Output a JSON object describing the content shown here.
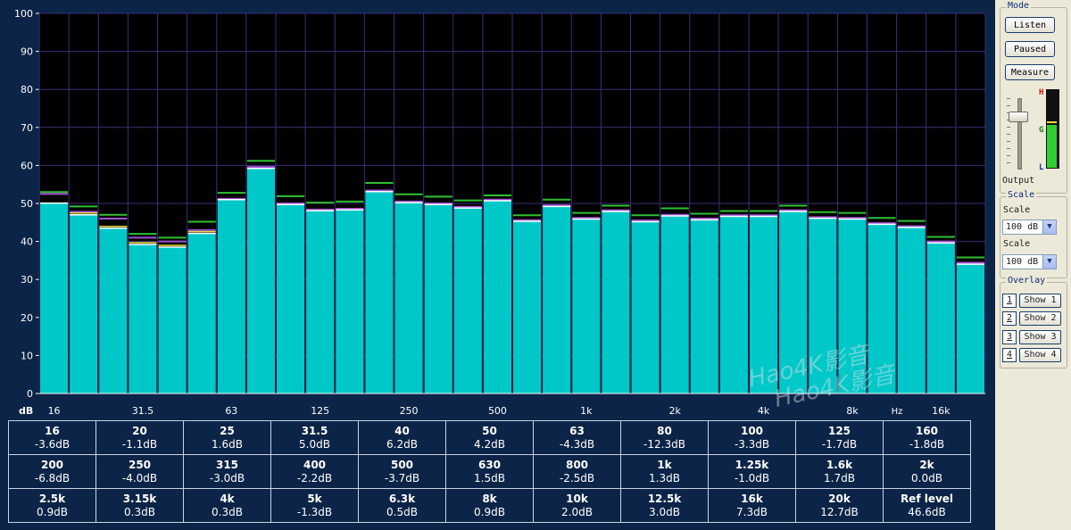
{
  "chart_data": {
    "type": "bar",
    "ylabel": "dB",
    "ylim": [
      0,
      100
    ],
    "y_ticks": [
      0,
      10,
      20,
      30,
      40,
      50,
      60,
      70,
      80,
      90,
      100
    ],
    "x_unit_label": "Hz",
    "x_tick_labels": [
      "16",
      "31.5",
      "63",
      "125",
      "250",
      "500",
      "1k",
      "2k",
      "4k",
      "8k",
      "16k"
    ],
    "grid": true,
    "categories": [
      "16",
      "20",
      "25",
      "31.5",
      "40",
      "50",
      "63",
      "80",
      "100",
      "125",
      "160",
      "200",
      "250",
      "315",
      "400",
      "500",
      "630",
      "800",
      "1k",
      "1.25k",
      "1.6k",
      "2k",
      "2.5k",
      "3.15k",
      "4k",
      "5k",
      "6.3k",
      "8k",
      "10k",
      "12.5k",
      "16k",
      "20k"
    ],
    "series": [
      {
        "values": [
          50.1,
          47.0,
          43.5,
          39.2,
          38.5,
          42.1,
          51.0,
          59.2,
          49.7,
          48.1,
          48.3,
          53.1,
          50.2,
          49.7,
          48.8,
          50.7,
          45.3,
          49.2,
          45.9,
          47.9,
          45.2,
          46.7,
          45.7,
          46.6,
          46.6,
          47.9,
          46.1,
          45.9,
          44.5,
          43.7,
          39.6,
          34.0
        ],
        "color": "#00c8c8"
      },
      {
        "values": [
          52.5,
          47.8,
          46.0,
          41.0,
          40.0,
          43.0,
          51.2,
          59.6,
          50.0,
          48.4,
          48.6,
          53.4,
          50.5,
          50.0,
          49.1,
          51.0,
          45.6,
          49.5,
          46.2,
          48.2,
          45.5,
          47.0,
          46.0,
          46.9,
          46.9,
          48.2,
          46.4,
          46.2,
          44.8,
          44.0,
          40.0,
          34.4
        ],
        "color": "#a050d0"
      },
      {
        "values": [
          53.0,
          49.2,
          47.0,
          42.0,
          41.0,
          45.2,
          52.8,
          61.2,
          51.9,
          50.2,
          50.5,
          55.4,
          52.4,
          51.8,
          50.8,
          52.1,
          46.9,
          51.0,
          47.5,
          49.4,
          46.9,
          48.7,
          47.3,
          48.0,
          48.0,
          49.4,
          47.7,
          47.5,
          46.2,
          45.4,
          41.2,
          35.8
        ],
        "color": "#30c030"
      }
    ]
  },
  "band_table": {
    "rows": [
      [
        {
          "freq": "16",
          "level": "-3.6dB"
        },
        {
          "freq": "20",
          "level": "-1.1dB"
        },
        {
          "freq": "25",
          "level": "1.6dB"
        },
        {
          "freq": "31.5",
          "level": "5.0dB"
        },
        {
          "freq": "40",
          "level": "6.2dB"
        },
        {
          "freq": "50",
          "level": "4.2dB"
        },
        {
          "freq": "63",
          "level": "-4.3dB"
        },
        {
          "freq": "80",
          "level": "-12.3dB"
        },
        {
          "freq": "100",
          "level": "-3.3dB"
        },
        {
          "freq": "125",
          "level": "-1.7dB"
        },
        {
          "freq": "160",
          "level": "-1.8dB"
        }
      ],
      [
        {
          "freq": "200",
          "level": "-6.8dB"
        },
        {
          "freq": "250",
          "level": "-4.0dB"
        },
        {
          "freq": "315",
          "level": "-3.0dB"
        },
        {
          "freq": "400",
          "level": "-2.2dB"
        },
        {
          "freq": "500",
          "level": "-3.7dB"
        },
        {
          "freq": "630",
          "level": "1.5dB"
        },
        {
          "freq": "800",
          "level": "-2.5dB"
        },
        {
          "freq": "1k",
          "level": "1.3dB"
        },
        {
          "freq": "1.25k",
          "level": "-1.0dB"
        },
        {
          "freq": "1.6k",
          "level": "1.7dB"
        },
        {
          "freq": "2k",
          "level": "0.0dB"
        }
      ],
      [
        {
          "freq": "2.5k",
          "level": "0.9dB"
        },
        {
          "freq": "3.15k",
          "level": "0.3dB"
        },
        {
          "freq": "4k",
          "level": "0.3dB"
        },
        {
          "freq": "5k",
          "level": "-1.3dB"
        },
        {
          "freq": "6.3k",
          "level": "0.5dB"
        },
        {
          "freq": "8k",
          "level": "0.9dB"
        },
        {
          "freq": "10k",
          "level": "2.0dB"
        },
        {
          "freq": "12.5k",
          "level": "3.0dB"
        },
        {
          "freq": "16k",
          "level": "7.3dB"
        },
        {
          "freq": "20k",
          "level": "12.7dB"
        },
        {
          "freq": "Ref level",
          "level": "46.6dB"
        }
      ]
    ]
  },
  "watermark": {
    "line1": "Hao4K影音",
    "line2": "Hao4K影音"
  },
  "side_panel": {
    "mode": {
      "title": "Mode",
      "listen": "Listen",
      "paused": "Paused",
      "measure": "Measure"
    },
    "output": {
      "label": "Output",
      "meter_h": "H",
      "meter_g": "G",
      "meter_l": "L",
      "level_fraction": 0.55
    },
    "scale": {
      "title": "Scale",
      "label1": "Scale",
      "value1": "100 dB",
      "label2": "Scale",
      "value2": "100 dB"
    },
    "overlay": {
      "title": "Overlay",
      "items": [
        {
          "num": "1",
          "label": "Show 1"
        },
        {
          "num": "2",
          "label": "Show 2"
        },
        {
          "num": "3",
          "label": "Show 3"
        },
        {
          "num": "4",
          "label": "Show 4"
        }
      ]
    }
  },
  "colors": {
    "panel_bg": "#0c2447",
    "plot_bg": "#000000",
    "grid": "#3a2f78",
    "bar_fill": "#00c8c8",
    "overlay_green": "#30c030",
    "overlay_purple": "#a050d0",
    "overlay_yellow": "#e8e040"
  }
}
